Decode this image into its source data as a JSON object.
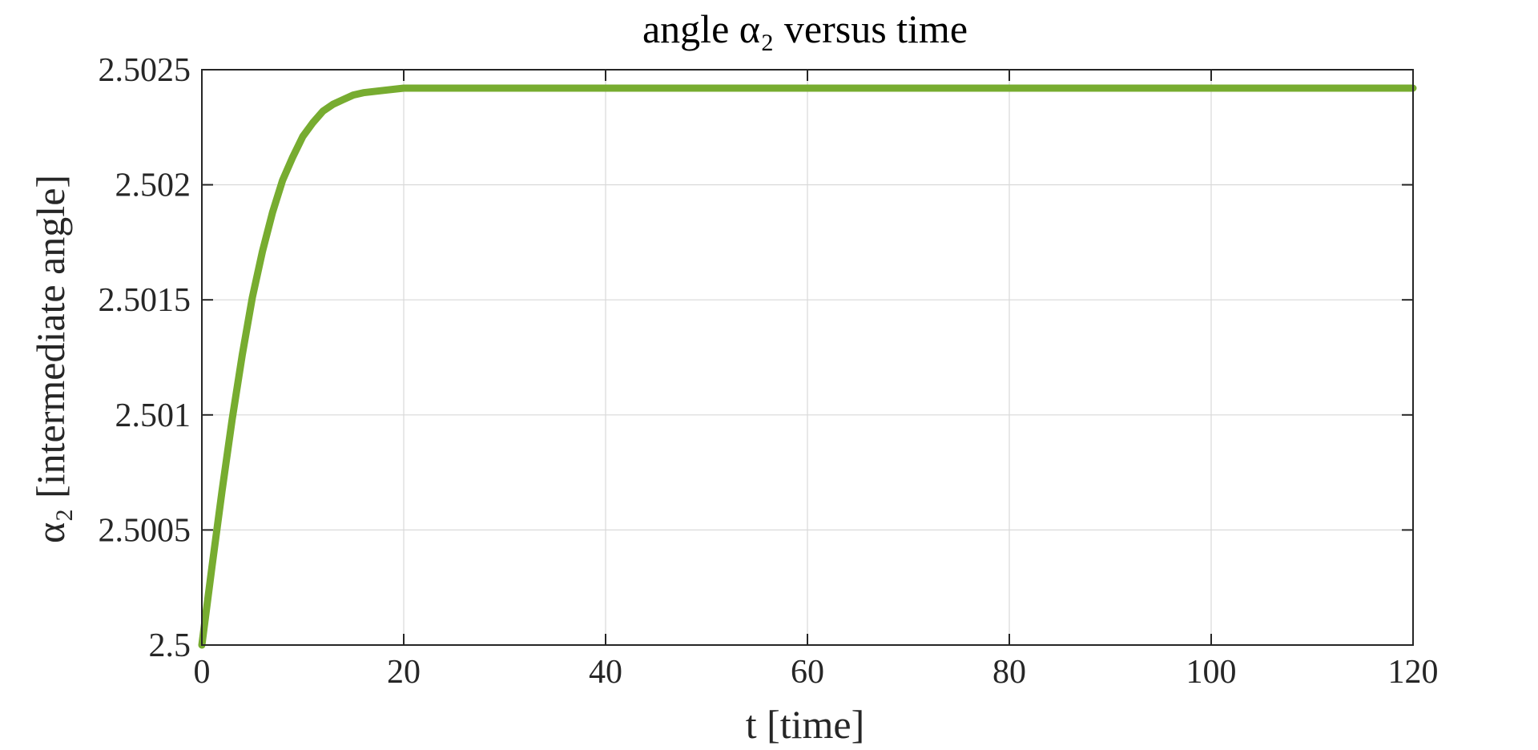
{
  "chart_data": {
    "type": "line",
    "title": "angle α₂ versus time",
    "xlabel": "t [time]",
    "ylabel": "α₂ [intermediate angle]",
    "xlim": [
      0,
      120
    ],
    "ylim": [
      2.5,
      2.5025
    ],
    "xticks": [
      0,
      20,
      40,
      60,
      80,
      100,
      120
    ],
    "xtick_labels": [
      "0",
      "20",
      "40",
      "60",
      "80",
      "100",
      "120"
    ],
    "yticks": [
      2.5,
      2.5005,
      2.501,
      2.5015,
      2.502,
      2.5025
    ],
    "ytick_labels": [
      "2.5",
      "2.5005",
      "2.501",
      "2.5015",
      "2.502",
      "2.5025"
    ],
    "grid": true,
    "legend": "none",
    "series": [
      {
        "color": "#77ac30",
        "x": [
          0,
          1,
          2,
          3,
          4,
          5,
          6,
          7,
          8,
          9,
          10,
          11,
          12,
          13,
          14,
          15,
          16,
          18,
          20,
          22,
          25,
          30,
          35,
          40,
          50,
          60,
          80,
          100,
          120
        ],
        "y": [
          2.5,
          2.50034,
          2.50067,
          2.50098,
          2.50126,
          2.50151,
          2.50171,
          2.50188,
          2.50202,
          2.50212,
          2.50221,
          2.50227,
          2.50232,
          2.50235,
          2.50237,
          2.50239,
          2.5024,
          2.50241,
          2.50242,
          2.50242,
          2.50242,
          2.50242,
          2.50242,
          2.50242,
          2.50242,
          2.50242,
          2.50242,
          2.50242,
          2.50242
        ]
      }
    ]
  }
}
